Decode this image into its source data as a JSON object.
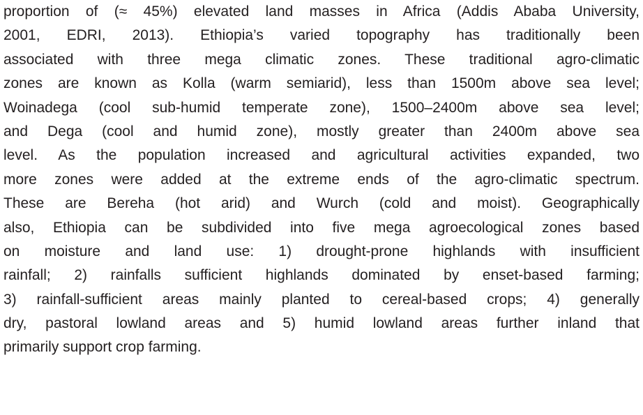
{
  "paragraph": {
    "lines": [
      "proportion of (≈ 45%) elevated land masses in Africa (Addis Ababa University,",
      "2001, EDRI, 2013). Ethiopia’s varied topography has traditionally been",
      "associated with three mega climatic zones. These traditional agro-climatic",
      "zones are known as Kolla (warm semiarid), less than 1500m above sea level;",
      "Woinadega (cool sub-humid temperate zone), 1500–2400m above sea level;",
      "and Dega (cool and humid zone), mostly greater than 2400m above sea",
      "level. As the population increased and agricultural activities expanded, two",
      "more zones were added at the extreme ends of the agro-climatic spectrum.",
      "These are Bereha (hot arid) and Wurch (cold and moist). Geographically",
      "also, Ethiopia can be subdivided into five mega agroecological zones based",
      "on moisture and land use:  1) drought-prone highlands with insufficient",
      "rainfall; 2) rainfalls sufficient highlands dominated by enset-based farming;",
      "3) rainfall-sufficient areas mainly planted  to cereal-based crops; 4) generally",
      "dry, pastoral lowland areas and 5) humid lowland areas further inland that",
      "primarily support crop farming."
    ]
  }
}
